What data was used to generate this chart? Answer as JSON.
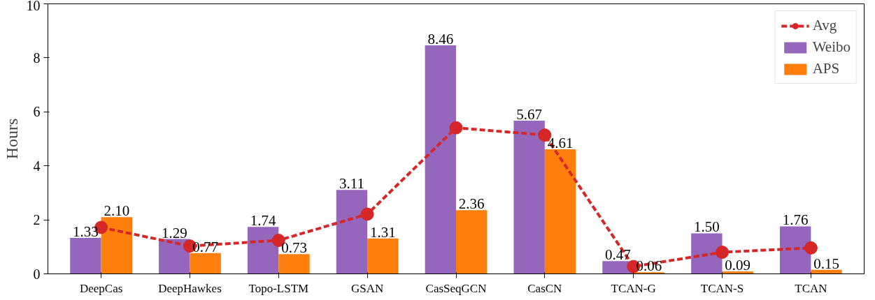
{
  "chart_data": {
    "type": "bar",
    "ylabel": "Hours",
    "categories": [
      "DeepCas",
      "DeepHawkes",
      "Topo-LSTM",
      "GSAN",
      "CasSeqGCN",
      "CasCN",
      "TCAN-G",
      "TCAN-S",
      "TCAN"
    ],
    "series": [
      {
        "name": "Avg",
        "type": "line",
        "color": "#d62728",
        "marker": "circle",
        "line_style": "dashed",
        "values": [
          1.72,
          1.03,
          1.24,
          2.21,
          5.41,
          5.14,
          0.27,
          0.8,
          0.96
        ]
      },
      {
        "name": "Weibo",
        "color": "#9467bd",
        "values": [
          1.33,
          1.29,
          1.74,
          3.11,
          8.46,
          5.67,
          0.47,
          1.5,
          1.76
        ],
        "value_labels": [
          "1.33",
          "1.29",
          "1.74",
          "3.11",
          "8.46",
          "5.67",
          "0.47",
          "1.50",
          "1.76"
        ]
      },
      {
        "name": "APS",
        "color": "#ff7f0e",
        "values": [
          2.1,
          0.77,
          0.73,
          1.31,
          2.36,
          4.61,
          0.06,
          0.09,
          0.15
        ],
        "value_labels": [
          "2.10",
          "0.77",
          "0.73",
          "1.31",
          "2.36",
          "4.61",
          "0.06",
          "0.09",
          "0.15"
        ]
      }
    ],
    "ylim": [
      0,
      10
    ],
    "yticks": [
      0,
      2,
      4,
      6,
      8,
      10
    ],
    "grid": false,
    "legend": "top right"
  }
}
